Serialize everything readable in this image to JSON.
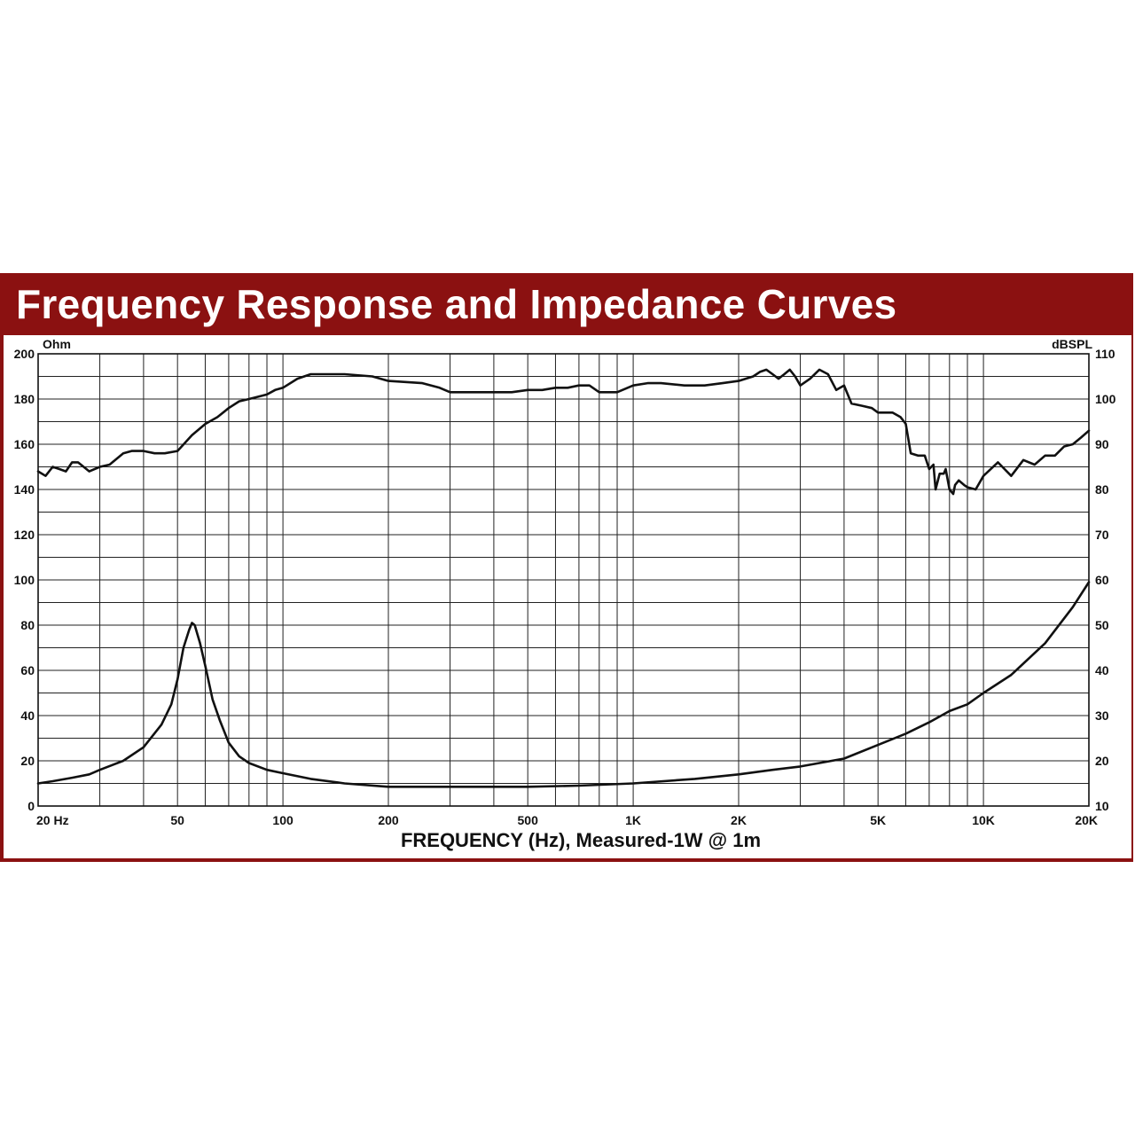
{
  "chart_data": {
    "type": "line",
    "title": "Frequency Response and Impedance Curves",
    "xlabel": "FREQUENCY (Hz), Measured-1W @ 1m",
    "xscale": "log",
    "xlim": [
      20,
      20000
    ],
    "x_tick_labels": [
      {
        "value": 20,
        "label": "20 Hz"
      },
      {
        "value": 50,
        "label": "50"
      },
      {
        "value": 100,
        "label": "100"
      },
      {
        "value": 200,
        "label": "200"
      },
      {
        "value": 500,
        "label": "500"
      },
      {
        "value": 1000,
        "label": "1K"
      },
      {
        "value": 2000,
        "label": "2K"
      },
      {
        "value": 5000,
        "label": "5K"
      },
      {
        "value": 10000,
        "label": "10K"
      },
      {
        "value": 20000,
        "label": "20K"
      }
    ],
    "y_left": {
      "label": "Ohm",
      "lim": [
        0,
        200
      ],
      "ticks": [
        0,
        20,
        40,
        60,
        80,
        100,
        120,
        140,
        160,
        180,
        200
      ]
    },
    "y_right": {
      "label": "dBSPL",
      "lim": [
        10,
        110
      ],
      "ticks": [
        10,
        20,
        30,
        40,
        50,
        60,
        70,
        80,
        90,
        100,
        110
      ]
    },
    "grid": true,
    "line_color": "#111111",
    "frame_color": "#8b1111",
    "series": [
      {
        "axis": "right",
        "x": [
          20,
          21,
          22,
          23,
          24,
          25,
          26,
          28,
          30,
          32,
          35,
          37,
          40,
          43,
          46,
          50,
          55,
          60,
          65,
          70,
          75,
          80,
          85,
          90,
          95,
          100,
          110,
          120,
          150,
          180,
          200,
          250,
          280,
          300,
          350,
          400,
          450,
          500,
          550,
          600,
          650,
          700,
          750,
          800,
          850,
          900,
          1000,
          1100,
          1200,
          1400,
          1600,
          1800,
          2000,
          2200,
          2300,
          2400,
          2500,
          2600,
          2700,
          2800,
          2900,
          3000,
          3200,
          3400,
          3600,
          3800,
          4000,
          4200,
          4500,
          4800,
          5000,
          5500,
          5800,
          6000,
          6200,
          6500,
          6800,
          7000,
          7200,
          7300,
          7500,
          7700,
          7800,
          8000,
          8200,
          8300,
          8500,
          8800,
          9000,
          9500,
          10000,
          11000,
          12000,
          13000,
          14000,
          15000,
          16000,
          17000,
          18000,
          19000,
          20000
        ],
        "y": [
          84,
          83,
          85,
          84.5,
          84,
          86,
          86,
          84,
          85,
          85.5,
          88,
          88.5,
          88.5,
          88,
          88,
          88.5,
          92,
          94.5,
          96,
          98,
          99.5,
          100,
          100.5,
          101,
          102,
          102.5,
          104.5,
          105.5,
          105.5,
          105,
          104,
          103.5,
          102.5,
          101.5,
          101.5,
          101.5,
          101.5,
          102,
          102,
          102.5,
          102.5,
          103,
          103,
          101.5,
          101.5,
          101.5,
          103,
          103.5,
          103.5,
          103,
          103,
          103.5,
          104,
          105,
          106,
          106.5,
          105.5,
          104.5,
          105.5,
          106.5,
          105,
          103,
          104.5,
          106.5,
          105.5,
          102,
          103,
          99,
          98.5,
          98,
          97,
          97,
          96,
          94.5,
          88,
          87.5,
          87.5,
          84.5,
          85.5,
          80,
          83.5,
          83.5,
          84.5,
          80,
          79,
          81,
          82,
          81,
          80.5,
          80,
          83,
          86,
          83,
          86.5,
          85.5,
          87.5,
          87.5,
          89.5,
          90,
          91.5,
          93
        ]
      },
      {
        "axis": "left",
        "x": [
          20,
          22,
          25,
          28,
          30,
          35,
          40,
          45,
          48,
          50,
          52,
          54,
          55,
          56,
          58,
          60,
          63,
          66,
          70,
          75,
          80,
          90,
          100,
          120,
          150,
          200,
          300,
          500,
          700,
          1000,
          1500,
          2000,
          2500,
          3000,
          4000,
          5000,
          6000,
          7000,
          8000,
          9000,
          10000,
          12000,
          15000,
          18000,
          20000
        ],
        "y": [
          10,
          11,
          12.5,
          14,
          16,
          20,
          26,
          36,
          45,
          56,
          70,
          78,
          81,
          80,
          72,
          62,
          47,
          38,
          28,
          22,
          19,
          16,
          14.5,
          12,
          10,
          8.5,
          8.5,
          8.5,
          9,
          10,
          12,
          14,
          16,
          17.5,
          21,
          27,
          32,
          37,
          42,
          45,
          50,
          58,
          72,
          88,
          99
        ]
      }
    ]
  }
}
